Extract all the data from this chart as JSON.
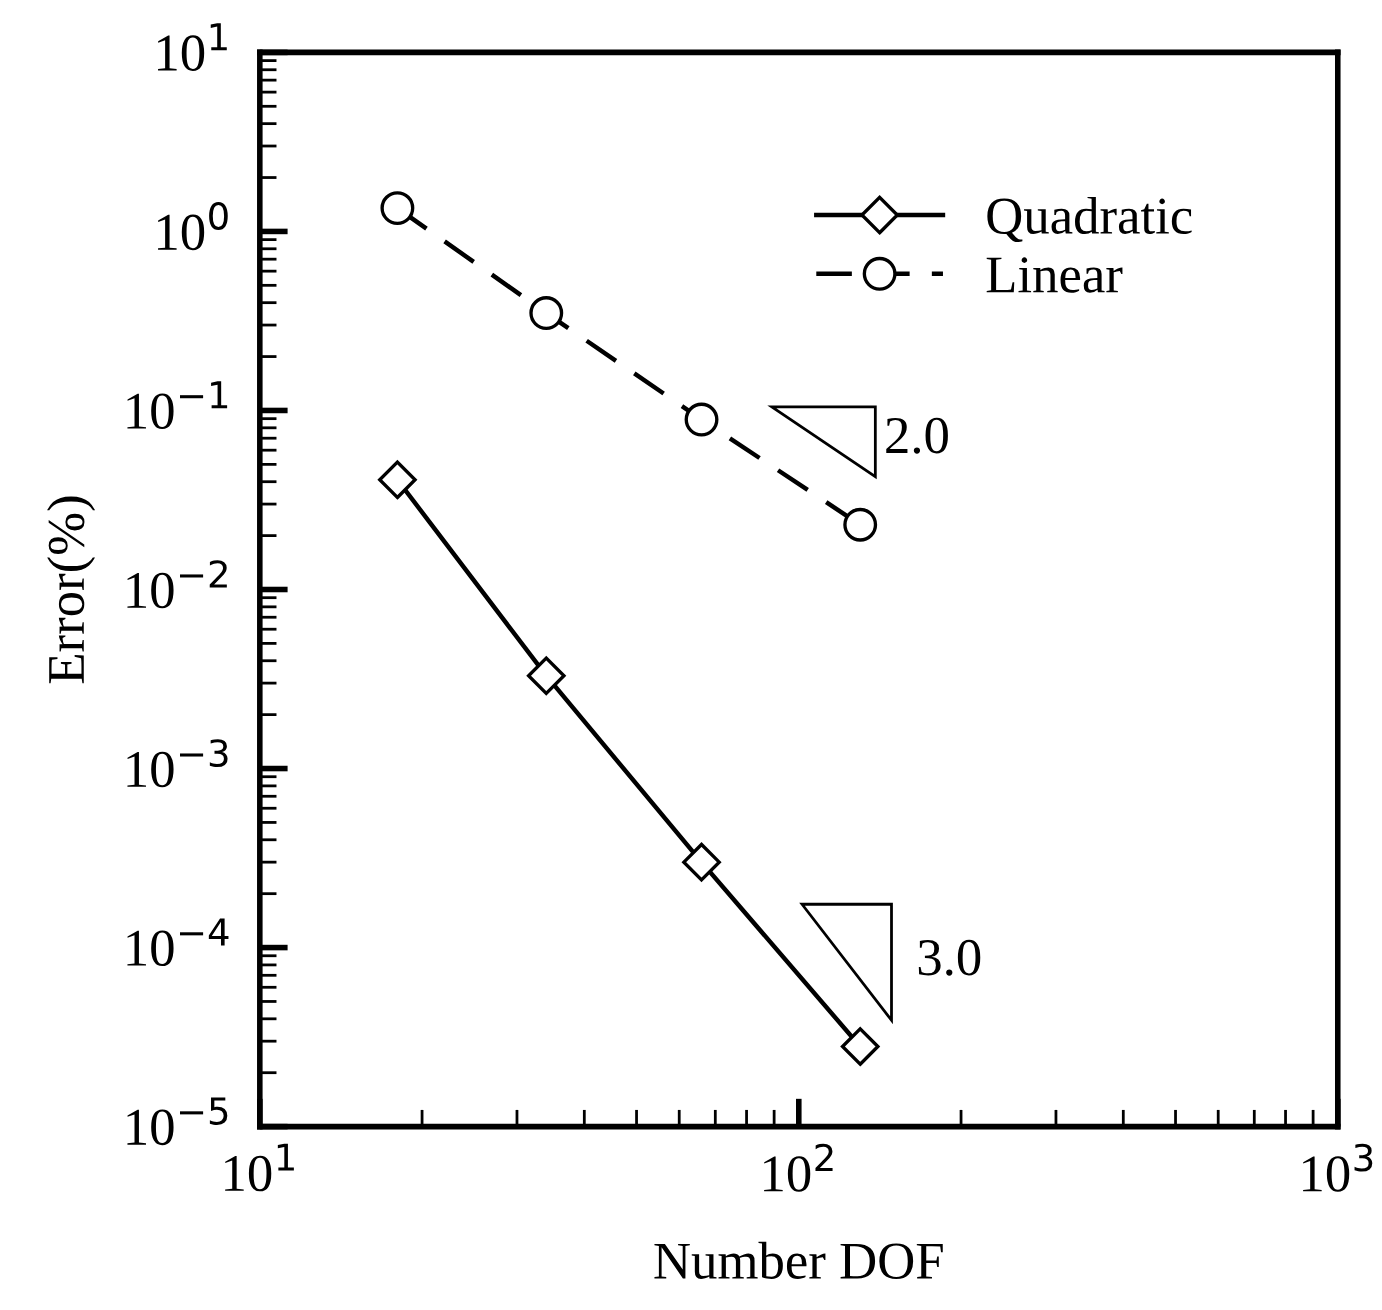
{
  "chart_data": {
    "type": "line",
    "xlabel": "Number DOF",
    "ylabel": "Error(%)",
    "log": "xy",
    "xlim": [
      10,
      1000
    ],
    "ylim": [
      1e-05,
      10
    ],
    "xticks": [
      {
        "value": 10,
        "label": "10$^{1}$"
      },
      {
        "value": 100,
        "label": "10$^{2}$"
      },
      {
        "value": 1000,
        "label": "10$^{3}$"
      }
    ],
    "yticks": [
      {
        "value": 1e-05,
        "label": "10$^{−5}$"
      },
      {
        "value": 0.0001,
        "label": "10$^{−4}$"
      },
      {
        "value": 0.001,
        "label": "10$^{−3}$"
      },
      {
        "value": 0.01,
        "label": "10$^{−2}$"
      },
      {
        "value": 0.1,
        "label": "10$^{−1}$"
      },
      {
        "value": 1,
        "label": "10$^{0}$"
      },
      {
        "value": 10,
        "label": "10$^{1}$"
      }
    ],
    "x": [
      18,
      34,
      66,
      130
    ],
    "series": [
      {
        "name": "Quadratic",
        "color": "#000000",
        "marker": "diamond",
        "line_style": "solid",
        "values": [
          0.041,
          0.0033,
          0.0003,
          2.8e-05
        ]
      },
      {
        "name": "Linear",
        "color": "#000000",
        "marker": "circle",
        "line_style": "dashed",
        "values": [
          1.35,
          0.35,
          0.089,
          0.023
        ]
      }
    ],
    "annotations": [
      "2.0",
      "3.0"
    ],
    "legend": "top right",
    "grid": false
  }
}
